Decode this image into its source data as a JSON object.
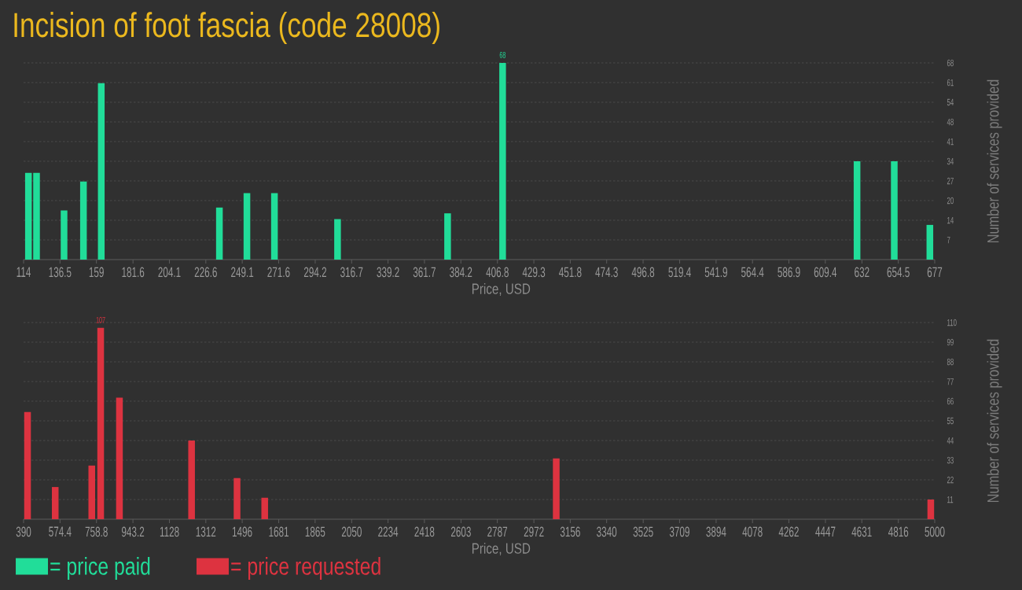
{
  "chart_data": [
    {
      "type": "bar",
      "title": "Incision of foot fascia (code 28008)",
      "xlabel": "Price, USD",
      "ylabel": "Number of services provided",
      "x": [
        117,
        122,
        139,
        151,
        162,
        235,
        252,
        269,
        308,
        376,
        410,
        629,
        652,
        674
      ],
      "series": [
        {
          "name": "= price paid",
          "color": "#21dd99",
          "values": [
            30,
            30,
            17,
            27,
            61,
            18,
            23,
            23,
            14,
            16,
            68,
            34,
            34,
            12
          ],
          "value_labels": [
            null,
            null,
            null,
            null,
            null,
            null,
            null,
            null,
            null,
            null,
            "68",
            null,
            null,
            null
          ]
        }
      ],
      "xlim": [
        114,
        677
      ],
      "xticks": [
        114,
        136.5,
        159,
        181.6,
        204.1,
        226.6,
        249.1,
        271.6,
        294.2,
        316.7,
        339.2,
        361.7,
        384.2,
        406.8,
        429.3,
        451.8,
        474.3,
        496.8,
        519.4,
        541.9,
        564.4,
        586.9,
        609.4,
        632,
        654.5,
        677
      ],
      "ylim": [
        0,
        68
      ],
      "yticks": [
        {
          "value": 6.8,
          "label": "7"
        },
        {
          "value": 13.6,
          "label": "14"
        },
        {
          "value": 20.4,
          "label": "20"
        },
        {
          "value": 27.2,
          "label": "27"
        },
        {
          "value": 34,
          "label": "34"
        },
        {
          "value": 40.8,
          "label": "41"
        },
        {
          "value": 47.6,
          "label": "48"
        },
        {
          "value": 54.4,
          "label": "54"
        },
        {
          "value": 61.2,
          "label": "61"
        },
        {
          "value": 68,
          "label": "68"
        }
      ],
      "grid": "y",
      "legend": "bottom"
    },
    {
      "type": "bar",
      "xlabel": "Price, USD",
      "ylabel": "Number of services provided",
      "x": [
        410,
        550,
        735,
        780,
        875,
        1240,
        1470,
        1610,
        3085,
        4980
      ],
      "series": [
        {
          "name": "= price requested",
          "color": "#dd3340",
          "values": [
            60,
            18,
            30,
            107,
            68,
            44,
            23,
            12,
            34,
            11
          ],
          "value_labels": [
            null,
            null,
            null,
            "107",
            null,
            null,
            null,
            null,
            null,
            null
          ]
        }
      ],
      "xlim": [
        390,
        5000
      ],
      "xticks": [
        390,
        574.4,
        758.8,
        943.2,
        1128,
        1312,
        1496,
        1681,
        1865,
        2050,
        2234,
        2418,
        2603,
        2787,
        2972,
        3156,
        3340,
        3525,
        3709,
        3894,
        4078,
        4262,
        4447,
        4631,
        4816,
        5000
      ],
      "ylim": [
        0,
        110
      ],
      "yticks": [
        11,
        22,
        33,
        44,
        55,
        66,
        77,
        88,
        99,
        110
      ],
      "grid": "y",
      "legend": "bottom"
    }
  ]
}
